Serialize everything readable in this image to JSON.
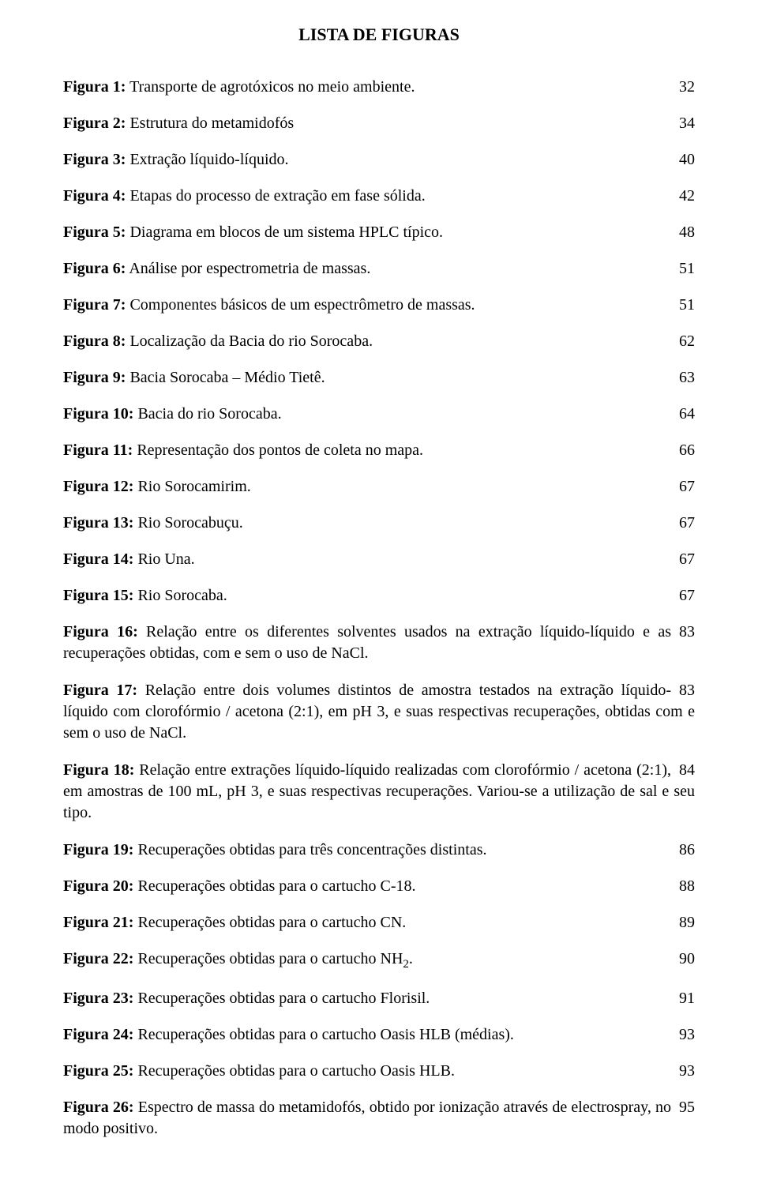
{
  "title": "LISTA DE FIGURAS",
  "sub_char": "2",
  "entries": [
    {
      "label": "Figura 1:",
      "text": " Transporte de agrotóxicos no meio ambiente.",
      "page": "32",
      "justified": false
    },
    {
      "label": "Figura 2:",
      "text": " Estrutura do metamidofós",
      "page": "34",
      "justified": false
    },
    {
      "label": "Figura 3:",
      "text": " Extração líquido-líquido.",
      "page": "40",
      "justified": false
    },
    {
      "label": "Figura 4:",
      "text": " Etapas do processo de extração em fase sólida.",
      "page": "42",
      "justified": false
    },
    {
      "label": "Figura 5:",
      "text": " Diagrama em blocos de um sistema HPLC típico.",
      "page": "48",
      "justified": false
    },
    {
      "label": "Figura 6:",
      "text": " Análise por espectrometria de massas.",
      "page": "51",
      "justified": false
    },
    {
      "label": "Figura 7:",
      "text": " Componentes básicos de um espectrômetro de massas.",
      "page": "51",
      "justified": false
    },
    {
      "label": "Figura 8:",
      "text": " Localização da Bacia do rio Sorocaba.",
      "page": "62",
      "justified": false
    },
    {
      "label": "Figura 9:",
      "text": " Bacia Sorocaba – Médio Tietê.",
      "page": "63",
      "justified": false
    },
    {
      "label": "Figura 10:",
      "text": " Bacia do rio Sorocaba.",
      "page": "64",
      "justified": false
    },
    {
      "label": "Figura 11:",
      "text": " Representação dos pontos de coleta no mapa.",
      "page": "66",
      "justified": false
    },
    {
      "label": "Figura 12:",
      "text": " Rio Sorocamirim.",
      "page": "67",
      "justified": false
    },
    {
      "label": "Figura 13:",
      "text": " Rio Sorocabuçu.",
      "page": "67",
      "justified": false
    },
    {
      "label": "Figura 14:",
      "text": " Rio Una.",
      "page": "67",
      "justified": false
    },
    {
      "label": "Figura 15:",
      "text": " Rio Sorocaba.",
      "page": "67",
      "justified": false
    },
    {
      "label": "Figura 16:",
      "text": " Relação entre os diferentes solventes usados na extração líquido-líquido e as recuperações obtidas, com e sem o uso de NaCl.",
      "page": "83",
      "justified": true
    },
    {
      "label": "Figura 17:",
      "text": " Relação entre dois volumes distintos de amostra testados na extração líquido-líquido com clorofórmio / acetona (2:1), em pH 3, e suas respectivas recuperações, obtidas com e sem o uso de NaCl.",
      "page": "83",
      "justified": true
    },
    {
      "label": "Figura 18:",
      "text": " Relação entre extrações líquido-líquido realizadas com clorofórmio / acetona (2:1), em amostras de 100 mL, pH 3, e suas respectivas recuperações. Variou-se a utilização de sal e seu tipo.",
      "page": "84",
      "justified": true
    },
    {
      "label": "Figura 19:",
      "text": " Recuperações obtidas para três concentrações distintas.",
      "page": "86",
      "justified": false
    },
    {
      "label": "Figura 20:",
      "text": " Recuperações obtidas para o cartucho C-18.",
      "page": "88",
      "justified": false
    },
    {
      "label": "Figura 21:",
      "text": " Recuperações obtidas para o cartucho CN.",
      "page": "89",
      "justified": false
    },
    {
      "label": "Figura 22:",
      "text_pre": " Recuperações obtidas para o cartucho NH",
      "text_post": ".",
      "page": "90",
      "justified": false,
      "has_sub": true
    },
    {
      "label": "Figura 23:",
      "text": " Recuperações obtidas para o cartucho Florisil.",
      "page": "91",
      "justified": false
    },
    {
      "label": "Figura 24:",
      "text": " Recuperações obtidas para o cartucho Oasis HLB (médias).",
      "page": "93",
      "justified": false
    },
    {
      "label": "Figura 25:",
      "text": " Recuperações obtidas para o cartucho Oasis HLB.",
      "page": "93",
      "justified": false
    },
    {
      "label": "Figura 26:",
      "text": " Espectro de massa do metamidofós, obtido por ionização através de electrospray, no modo positivo.",
      "page": "95",
      "justified": true
    }
  ]
}
